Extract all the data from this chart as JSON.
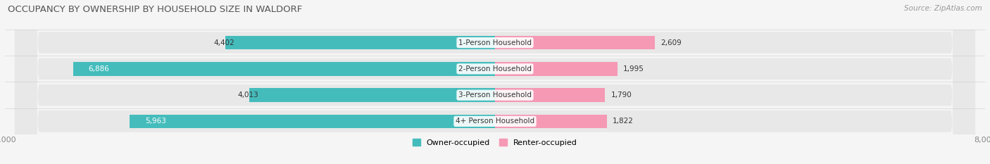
{
  "title": "OCCUPANCY BY OWNERSHIP BY HOUSEHOLD SIZE IN WALDORF",
  "source": "Source: ZipAtlas.com",
  "categories": [
    "1-Person Household",
    "2-Person Household",
    "3-Person Household",
    "4+ Person Household"
  ],
  "owner_values": [
    4402,
    6886,
    4013,
    5963
  ],
  "renter_values": [
    2609,
    1995,
    1790,
    1822
  ],
  "axis_max": 8000,
  "owner_color": "#45BCBC",
  "renter_color": "#F599B4",
  "row_bg_color": "#e8e8e8",
  "fig_bg_color": "#f5f5f5",
  "title_color": "#555555",
  "source_color": "#999999",
  "label_dark": "#333333",
  "label_white": "#ffffff",
  "legend_owner": "Owner-occupied",
  "legend_renter": "Renter-occupied",
  "owner_threshold": 5000,
  "renter_threshold": 5000
}
